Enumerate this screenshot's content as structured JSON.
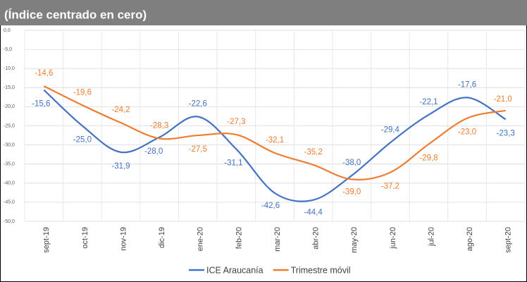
{
  "chart_data": {
    "type": "line",
    "subtitle": "(Índice centrado en cero)",
    "categories": [
      "sept-19",
      "oct-19",
      "nov-19",
      "dic-19",
      "ene-20",
      "feb-20",
      "mar-20",
      "abr-20",
      "may-20",
      "jun-20",
      "jul-20",
      "ago-20",
      "sept-20"
    ],
    "series": [
      {
        "name": "ICE Araucanía",
        "color": "#4472c4",
        "values": [
          -15.6,
          -25.0,
          -31.9,
          -28.0,
          -22.6,
          -31.1,
          -42.6,
          -44.4,
          -38.0,
          -29.4,
          -22.1,
          -17.6,
          -23.3
        ],
        "value_labels": [
          "-15,6",
          "-25,0",
          "-31,9",
          "-28,0",
          "-22,6",
          "-31,1",
          "-42,6",
          "-44,4",
          "-38,0",
          "-29,4",
          "-22,1",
          "-17,6",
          "-23,3"
        ]
      },
      {
        "name": "Trimestre móvil",
        "color": "#ed7d31",
        "values": [
          -14.6,
          -19.6,
          -24.2,
          -28.3,
          -27.5,
          -27.3,
          -32.1,
          -35.2,
          -39.0,
          -37.2,
          -29.8,
          -23.0,
          -21.0
        ],
        "value_labels": [
          "-14,6",
          "-19,6",
          "-24,2",
          "-28,3",
          "-27,5",
          "-27,3",
          "-32,1",
          "-35,2",
          "-39,0",
          "-37,2",
          "-29,8",
          "-23,0",
          "-21,0"
        ]
      }
    ],
    "ylim": [
      -50,
      0
    ],
    "yticks": [
      {
        "value": 0,
        "label": "0,0"
      },
      {
        "value": -5,
        "label": "-5,0"
      },
      {
        "value": -10,
        "label": "-10,0"
      },
      {
        "value": -15,
        "label": "-15,0"
      },
      {
        "value": -20,
        "label": "-20,0"
      },
      {
        "value": -25,
        "label": "-25,0"
      },
      {
        "value": -30,
        "label": "-30,0"
      },
      {
        "value": -35,
        "label": "-35,0"
      },
      {
        "value": -40,
        "label": "-40,0"
      },
      {
        "value": -45,
        "label": "-45,0"
      },
      {
        "value": -50,
        "label": "-50,0"
      }
    ],
    "grid": true,
    "smooth": true,
    "legend": "bottom"
  }
}
